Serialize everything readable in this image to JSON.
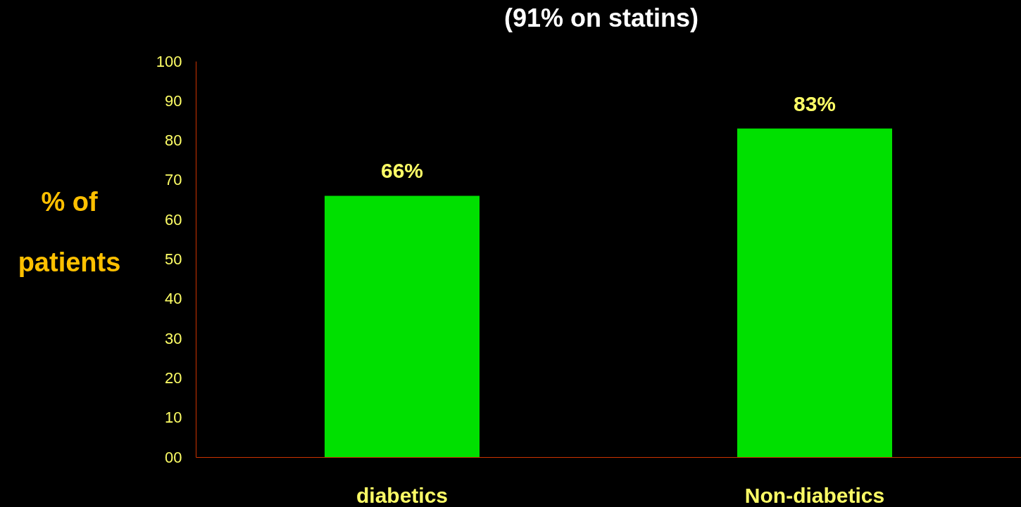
{
  "chart_data": {
    "type": "bar",
    "title": "(91% on statins)",
    "ylabel": "% of patients",
    "categories": [
      "diabetics",
      "Non-diabetics"
    ],
    "values": [
      66,
      83
    ],
    "value_labels": [
      "66%",
      "83%"
    ],
    "color": "#00e000",
    "ylim": [
      0,
      100
    ],
    "yticks": [
      {
        "value": 0,
        "label": "00"
      },
      10,
      20,
      30,
      40,
      50,
      60,
      70,
      80,
      90,
      100
    ],
    "grid": false
  }
}
